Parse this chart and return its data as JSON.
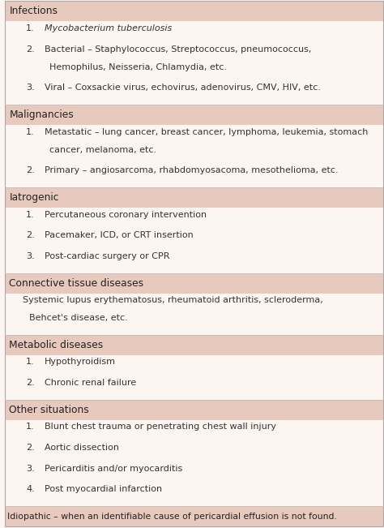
{
  "bg_color": "#fdf5f2",
  "header_bg": "#e8c9be",
  "white_bg": "#fdf5f2",
  "text_color": "#333333",
  "header_color": "#222222",
  "sections": [
    {
      "header": "Infections",
      "items": [
        {
          "num": "1.",
          "line1": "Mycobacterium tuberculosis",
          "line2": "",
          "italic": true
        },
        {
          "num": "2.",
          "line1": "Bacterial – Staphylococcus, Streptococcus, pneumococcus,",
          "line2": "Hemophilus, Neisseria, Chlamydia, etc.",
          "italic": false
        },
        {
          "num": "3.",
          "line1": "Viral – Coxsackie virus, echovirus, adenovirus, CMV, HIV, etc.",
          "line2": "",
          "italic": false
        }
      ]
    },
    {
      "header": "Malignancies",
      "items": [
        {
          "num": "1.",
          "line1": "Metastatic – lung cancer, breast cancer, lymphoma, leukemia, stomach",
          "line2": "cancer, melanoma, etc.",
          "italic": false
        },
        {
          "num": "2.",
          "line1": "Primary – angiosarcoma, rhabdomyosacoma, mesothelioma, etc.",
          "line2": "",
          "italic": false
        }
      ]
    },
    {
      "header": "Iatrogenic",
      "items": [
        {
          "num": "1.",
          "line1": "Percutaneous coronary intervention",
          "line2": "",
          "italic": false
        },
        {
          "num": "2.",
          "line1": "Pacemaker, ICD, or CRT insertion",
          "line2": "",
          "italic": false
        },
        {
          "num": "3.",
          "line1": "Post-cardiac surgery or CPR",
          "line2": "",
          "italic": false
        }
      ]
    },
    {
      "header": "Connective tissue diseases",
      "items": [
        {
          "num": "",
          "line1": "Systemic lupus erythematosus, rheumatoid arthritis, scleroderma,",
          "line2": "Behcet's disease, etc.",
          "italic": false
        }
      ]
    },
    {
      "header": "Metabolic diseases",
      "items": [
        {
          "num": "1.",
          "line1": "Hypothyroidism",
          "line2": "",
          "italic": false
        },
        {
          "num": "2.",
          "line1": "Chronic renal failure",
          "line2": "",
          "italic": false
        }
      ]
    },
    {
      "header": "Other situations",
      "items": [
        {
          "num": "1.",
          "line1": "Blunt chest trauma or penetrating chest wall injury",
          "line2": "",
          "italic": false
        },
        {
          "num": "2.",
          "line1": "Aortic dissection",
          "line2": "",
          "italic": false
        },
        {
          "num": "3.",
          "line1": "Pericarditis and/or myocarditis",
          "line2": "",
          "italic": false
        },
        {
          "num": "4.",
          "line1": "Post myocardial infarction",
          "line2": "",
          "italic": false
        }
      ]
    }
  ],
  "footer": "Idiopathic – when an identifiable cause of pericardial effusion is not found.",
  "figsize": [
    4.74,
    6.51
  ],
  "dpi": 100
}
